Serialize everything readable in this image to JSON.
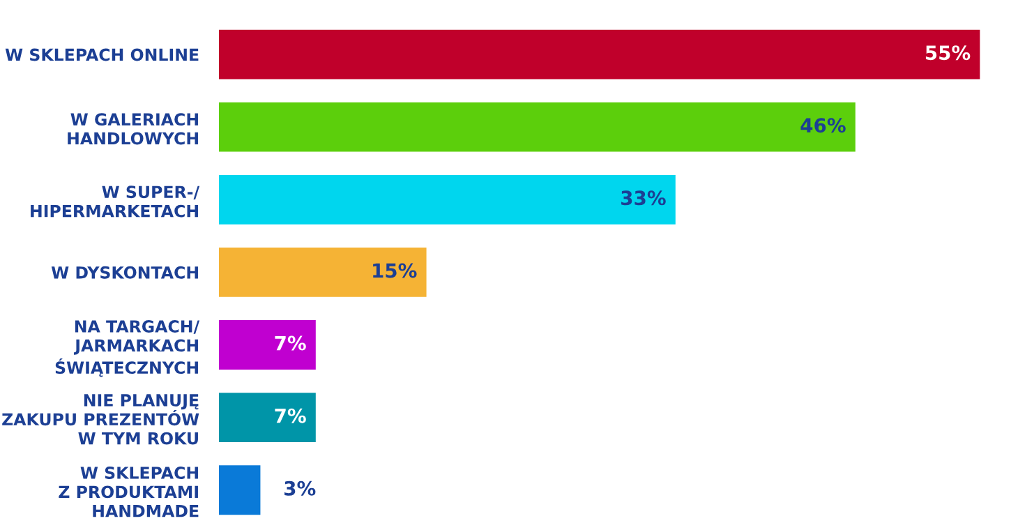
{
  "chart_data": {
    "type": "bar",
    "orientation": "horizontal",
    "tick_labels": "y",
    "grid": false,
    "legend": false,
    "categories": [
      "W SKLEPACH ONLINE",
      "W GALERIACH\nHANDLOWYCH",
      "W SUPER-/\nHIPERMARKETACH",
      "W DYSKONTACH",
      "NA TARGACH/\nJARMARKACH\nŚWIĄTECZNYCH",
      "NIE PLANUJĘ\nZAKUPU PREZENTÓW\nW TYM ROKU",
      "W SKLEPACH\nZ PRODUKTAMI\nHANDMADE"
    ],
    "values": [
      55,
      46,
      33,
      15,
      7,
      7,
      3
    ],
    "value_labels": [
      "55%",
      "46%",
      "33%",
      "15%",
      "7%",
      "7%",
      "3%"
    ],
    "colors": [
      "#c0002b",
      "#5ccf0c",
      "#00d6ee",
      "#f5b335",
      "#c000d0",
      "#0095a8",
      "#0a7ad8"
    ]
  }
}
